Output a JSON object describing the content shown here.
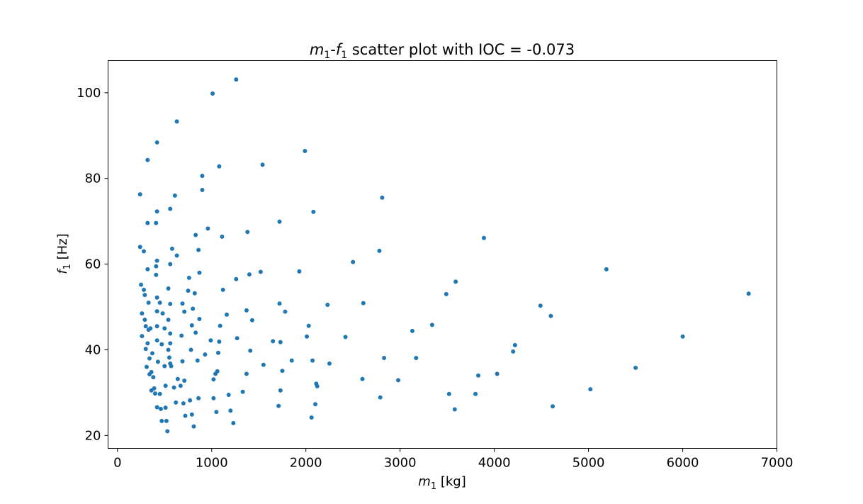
{
  "chart_data": {
    "type": "scatter",
    "title": {
      "x_var": "m",
      "x_sub": "1",
      "sep": "-",
      "y_var": "f",
      "y_sub": "1",
      "rest": " scatter plot with IOC = -0.073"
    },
    "xlabel": {
      "var": "m",
      "sub": "1",
      "unit": " [kg]"
    },
    "ylabel": {
      "var": "f",
      "sub": "1",
      "unit": " [Hz]"
    },
    "xlim": [
      -100,
      7000
    ],
    "ylim": [
      17,
      107.5
    ],
    "x_ticks": [
      0,
      1000,
      2000,
      3000,
      4000,
      5000,
      6000,
      7000
    ],
    "x_tick_labels": [
      "0",
      "1000",
      "2000",
      "3000",
      "4000",
      "5000",
      "6000",
      "7000"
    ],
    "y_ticks": [
      20,
      40,
      60,
      80,
      100
    ],
    "y_tick_labels": [
      "20",
      "40",
      "60",
      "80",
      "100"
    ],
    "grid": false,
    "legend": "none",
    "marker_color": "#1f77b4",
    "points": [
      [
        240,
        76.3
      ],
      [
        240,
        64
      ],
      [
        250,
        55.2
      ],
      [
        260,
        48.5
      ],
      [
        260,
        43.2
      ],
      [
        280,
        54
      ],
      [
        280,
        63
      ],
      [
        290,
        52.8
      ],
      [
        290,
        47
      ],
      [
        300,
        45.5
      ],
      [
        300,
        40.2
      ],
      [
        310,
        36
      ],
      [
        320,
        84.3
      ],
      [
        320,
        69.6
      ],
      [
        320,
        58.8
      ],
      [
        320,
        41.5
      ],
      [
        330,
        51
      ],
      [
        330,
        44.7
      ],
      [
        340,
        38
      ],
      [
        340,
        34.3
      ],
      [
        350,
        45
      ],
      [
        360,
        34.8
      ],
      [
        360,
        30.5
      ],
      [
        370,
        39.2
      ],
      [
        380,
        33.6
      ],
      [
        390,
        31
      ],
      [
        400,
        29.8
      ],
      [
        410,
        69.6
      ],
      [
        410,
        59.5
      ],
      [
        410,
        57.5
      ],
      [
        420,
        88.4
      ],
      [
        420,
        72.3
      ],
      [
        420,
        60.8
      ],
      [
        420,
        52.2
      ],
      [
        420,
        49
      ],
      [
        420,
        45.5
      ],
      [
        420,
        42.2
      ],
      [
        420,
        26.6
      ],
      [
        430,
        37.2
      ],
      [
        450,
        29.7
      ],
      [
        450,
        51
      ],
      [
        460,
        26.2
      ],
      [
        470,
        41.3
      ],
      [
        470,
        23.4
      ],
      [
        480,
        48.5
      ],
      [
        500,
        45
      ],
      [
        500,
        36.2
      ],
      [
        510,
        26.5
      ],
      [
        510,
        31.6
      ],
      [
        520,
        23.4
      ],
      [
        530,
        21
      ],
      [
        540,
        54.3
      ],
      [
        540,
        47
      ],
      [
        540,
        40
      ],
      [
        550,
        38.2
      ],
      [
        560,
        72.9
      ],
      [
        560,
        60
      ],
      [
        560,
        50.7
      ],
      [
        560,
        43.8
      ],
      [
        560,
        41.5
      ],
      [
        560,
        36.8
      ],
      [
        570,
        36.2
      ],
      [
        580,
        63.6
      ],
      [
        600,
        31.2
      ],
      [
        610,
        76
      ],
      [
        620,
        27.7
      ],
      [
        630,
        93.3
      ],
      [
        630,
        62
      ],
      [
        640,
        33.2
      ],
      [
        670,
        31.6
      ],
      [
        680,
        43.3
      ],
      [
        690,
        50.8
      ],
      [
        690,
        37.3
      ],
      [
        700,
        27.5
      ],
      [
        710,
        48.9
      ],
      [
        710,
        32.8
      ],
      [
        720,
        24.6
      ],
      [
        750,
        53.8
      ],
      [
        760,
        56.8
      ],
      [
        770,
        28.2
      ],
      [
        780,
        40
      ],
      [
        790,
        45.7
      ],
      [
        790,
        24.9
      ],
      [
        800,
        49.6
      ],
      [
        810,
        22.1
      ],
      [
        820,
        53.2
      ],
      [
        830,
        66.8
      ],
      [
        830,
        44
      ],
      [
        850,
        37.5
      ],
      [
        860,
        63.3
      ],
      [
        860,
        28.7
      ],
      [
        870,
        58
      ],
      [
        870,
        47.2
      ],
      [
        900,
        80.6
      ],
      [
        900,
        77.3
      ],
      [
        930,
        38.9
      ],
      [
        960,
        68.3
      ],
      [
        990,
        42.2
      ],
      [
        1010,
        99.8
      ],
      [
        1020,
        33.1
      ],
      [
        1020,
        28.7
      ],
      [
        1040,
        34.4
      ],
      [
        1050,
        25.5
      ],
      [
        1060,
        35
      ],
      [
        1070,
        39.3
      ],
      [
        1080,
        82.8
      ],
      [
        1080,
        41.9
      ],
      [
        1090,
        45.6
      ],
      [
        1110,
        66.4
      ],
      [
        1120,
        54
      ],
      [
        1160,
        48.2
      ],
      [
        1180,
        29.5
      ],
      [
        1200,
        25.8
      ],
      [
        1230,
        22.9
      ],
      [
        1260,
        103.1
      ],
      [
        1260,
        56.5
      ],
      [
        1270,
        42.7
      ],
      [
        1330,
        30.2
      ],
      [
        1370,
        49.2
      ],
      [
        1370,
        34.4
      ],
      [
        1380,
        67.5
      ],
      [
        1400,
        57.6
      ],
      [
        1410,
        39.8
      ],
      [
        1430,
        46.9
      ],
      [
        1520,
        58.2
      ],
      [
        1540,
        83.2
      ],
      [
        1550,
        36.5
      ],
      [
        1650,
        42
      ],
      [
        1710,
        26.9
      ],
      [
        1720,
        69.9
      ],
      [
        1720,
        50.8
      ],
      [
        1730,
        30.5
      ],
      [
        1730,
        41.8
      ],
      [
        1750,
        35.1
      ],
      [
        1780,
        48.9
      ],
      [
        1850,
        37.5
      ],
      [
        1930,
        58.3
      ],
      [
        1990,
        86.4
      ],
      [
        2010,
        43.1
      ],
      [
        2030,
        45.6
      ],
      [
        2060,
        24.2
      ],
      [
        2070,
        37.5
      ],
      [
        2080,
        72.2
      ],
      [
        2100,
        27.3
      ],
      [
        2110,
        32.1
      ],
      [
        2120,
        31.5
      ],
      [
        2230,
        50.5
      ],
      [
        2250,
        36.8
      ],
      [
        2420,
        43
      ],
      [
        2500,
        60.5
      ],
      [
        2600,
        33.2
      ],
      [
        2610,
        50.9
      ],
      [
        2780,
        63.1
      ],
      [
        2790,
        28.9
      ],
      [
        2810,
        75.5
      ],
      [
        2830,
        38.1
      ],
      [
        2980,
        32.9
      ],
      [
        3130,
        44.4
      ],
      [
        3170,
        38.1
      ],
      [
        3340,
        45.8
      ],
      [
        3490,
        53
      ],
      [
        3520,
        29.7
      ],
      [
        3580,
        26.1
      ],
      [
        3590,
        55.9
      ],
      [
        3800,
        29.7
      ],
      [
        3830,
        34
      ],
      [
        3890,
        66.1
      ],
      [
        4030,
        34.4
      ],
      [
        4200,
        39.6
      ],
      [
        4220,
        41.1
      ],
      [
        4490,
        50.3
      ],
      [
        4600,
        47.9
      ],
      [
        4620,
        26.8
      ],
      [
        5020,
        30.8
      ],
      [
        5190,
        58.8
      ],
      [
        5500,
        35.8
      ],
      [
        6000,
        43.1
      ],
      [
        6700,
        53.1
      ]
    ]
  }
}
